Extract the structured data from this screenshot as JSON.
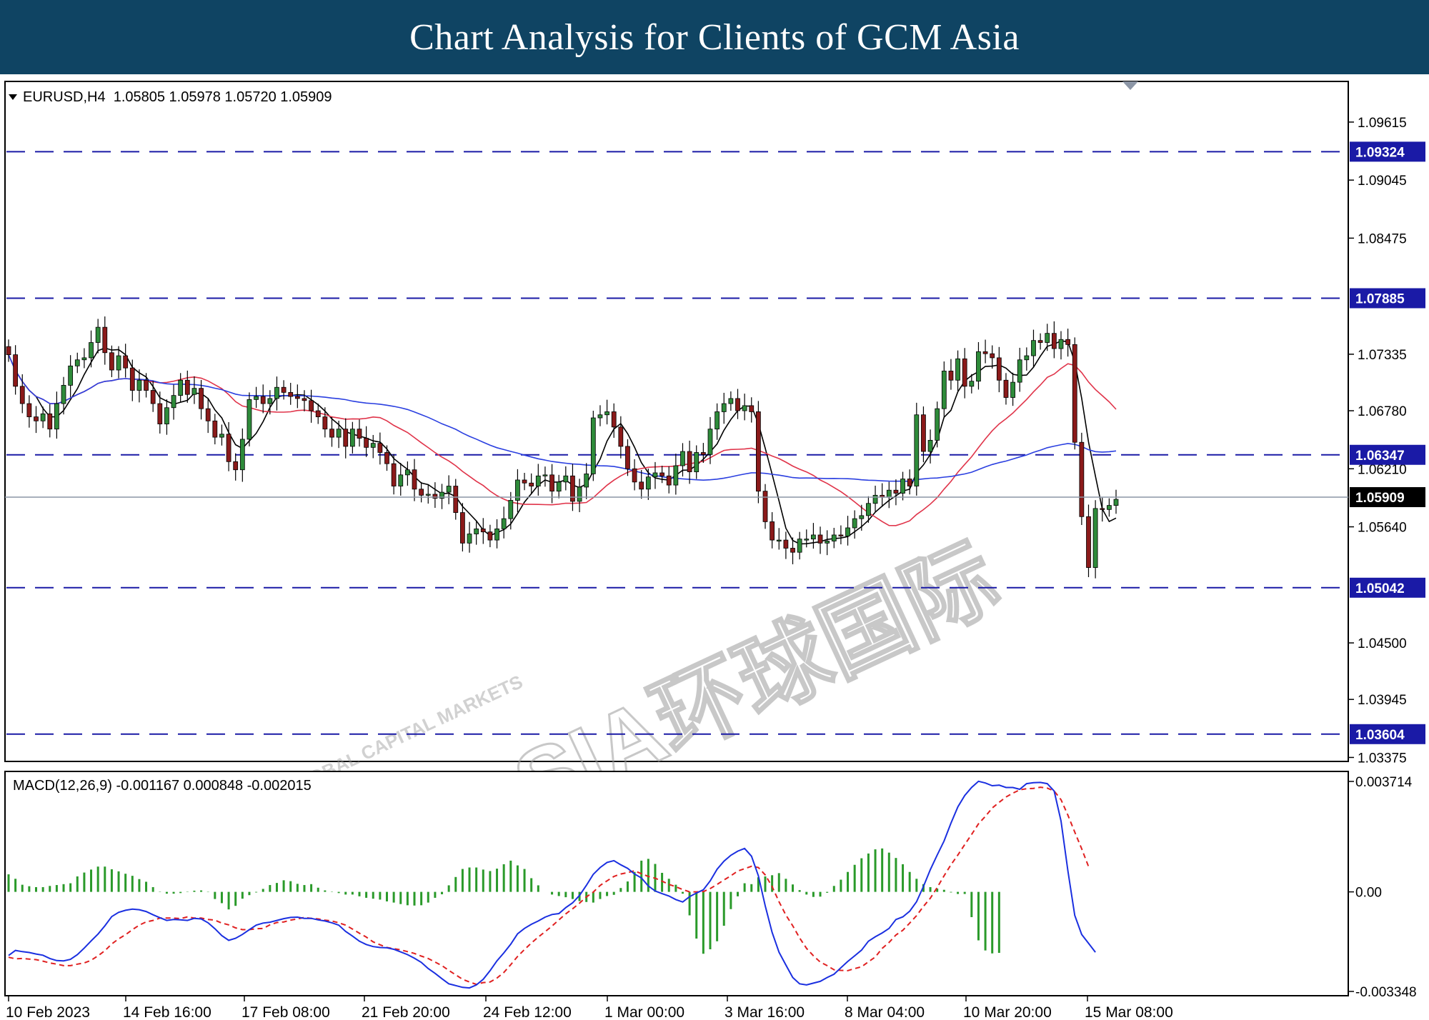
{
  "header": {
    "title": "Chart Analysis for Clients of GCM Asia"
  },
  "price_panel": {
    "symbol_line": "EURUSD,H4  1.05805 1.05978 1.05720 1.05909",
    "watermark": "GCMASIA环球国际",
    "watermark_sub": "GLOBAL CAPITAL MARKETS"
  },
  "macd_panel": {
    "label": "MACD(12,26,9) -0.001167 0.000848 -0.002015"
  },
  "colors": {
    "banner": "#0f4463",
    "levels": "#1a1aa6",
    "ma_fast": "#000000",
    "ma_mid": "#e0344a",
    "ma_slow": "#2a3fe0",
    "candle_up": "#2e8b3a",
    "candle_down": "#8b1a1a",
    "hist": "#2a9a2a",
    "macd_line": "#1a2fe0",
    "signal_line": "#e02020"
  },
  "chart_data": [
    {
      "type": "candlestick",
      "title": "EURUSD,H4",
      "ohlc_last": {
        "open": 1.05805,
        "high": 1.05978,
        "low": 1.0572,
        "close": 1.05909
      },
      "ylim": [
        1.0335,
        1.1
      ],
      "y_ticks": [
        1.09615,
        1.09045,
        1.08475,
        1.07335,
        1.0678,
        1.0621,
        1.0564,
        1.045,
        1.03945,
        1.03375
      ],
      "x_ticks": [
        "10 Feb 2023",
        "14 Feb 16:00",
        "17 Feb 08:00",
        "21 Feb 20:00",
        "24 Feb 12:00",
        "1 Mar 00:00",
        "3 Mar 16:00",
        "8 Mar 04:00",
        "10 Mar 20:00",
        "15 Mar 08:00"
      ],
      "current_price": "1.05909",
      "horizontal_levels": [
        "1.09324",
        "1.07885",
        "1.06347",
        "1.05042",
        "1.03604"
      ],
      "closes": [
        1.0733,
        1.0702,
        1.0685,
        1.0672,
        1.0668,
        1.0675,
        1.066,
        1.0685,
        1.0703,
        1.0722,
        1.0728,
        1.073,
        1.0745,
        1.076,
        1.0735,
        1.0718,
        1.0732,
        1.072,
        1.0698,
        1.0708,
        1.0698,
        1.0685,
        1.0665,
        1.0681,
        1.0693,
        1.0708,
        1.0694,
        1.07,
        1.068,
        1.0668,
        1.0652,
        1.0655,
        1.0628,
        1.062,
        1.065,
        1.0689,
        1.0692,
        1.0685,
        1.069,
        1.0701,
        1.0696,
        1.0692,
        1.069,
        1.0688,
        1.0678,
        1.0672,
        1.066,
        1.0652,
        1.066,
        1.0643,
        1.066,
        1.0651,
        1.0642,
        1.0646,
        1.0637,
        1.0626,
        1.0604,
        1.0615,
        1.062,
        1.0601,
        1.0595,
        1.0596,
        1.0592,
        1.0598,
        1.0604,
        1.0578,
        1.0548,
        1.0557,
        1.0562,
        1.0559,
        1.0551,
        1.0562,
        1.0572,
        1.059,
        1.061,
        1.0607,
        1.0604,
        1.0614,
        1.0615,
        1.0599,
        1.0608,
        1.0614,
        1.0589,
        1.0603,
        1.0616,
        1.0671,
        1.0674,
        1.0677,
        1.0662,
        1.0643,
        1.0621,
        1.0608,
        1.0601,
        1.0613,
        1.0617,
        1.0614,
        1.0605,
        1.0624,
        1.0638,
        1.0618,
        1.0637,
        1.0635,
        1.066,
        1.0677,
        1.0685,
        1.069,
        1.0678,
        1.0683,
        1.0677,
        1.0599,
        1.0569,
        1.0551,
        1.0551,
        1.0543,
        1.0539,
        1.0552,
        1.0552,
        1.0556,
        1.0548,
        1.055,
        1.0556,
        1.0555,
        1.0563,
        1.0572,
        1.0575,
        1.0587,
        1.0595,
        1.0593,
        1.06,
        1.0597,
        1.0611,
        1.0604,
        1.0674,
        1.0638,
        1.0649,
        1.068,
        1.0717,
        1.0708,
        1.0729,
        1.0702,
        1.0707,
        1.0736,
        1.0734,
        1.073,
        1.0708,
        1.0691,
        1.0706,
        1.0728,
        1.0732,
        1.0747,
        1.0745,
        1.0754,
        1.0739,
        1.0748,
        1.0743,
        1.0647,
        1.0574,
        1.0524,
        1.0582,
        1.0581,
        1.0585,
        1.0591
      ]
    },
    {
      "type": "line",
      "title": "MACD(12,26,9)",
      "series": [
        {
          "name": "MACD",
          "values": [
            -0.00214,
            -0.00197,
            -0.00201,
            -0.00204,
            -0.00209,
            -0.00213,
            -0.00224,
            -0.00231,
            -0.00232,
            -0.00227,
            -0.00211,
            -0.00189,
            -0.00165,
            -0.00142,
            -0.00114,
            -0.00083,
            -0.00069,
            -0.00062,
            -0.00058,
            -0.0006,
            -0.00066,
            -0.00077,
            -0.00087,
            -0.00096,
            -0.00093,
            -0.00094,
            -0.00096,
            -0.00089,
            -0.00091,
            -0.00104,
            -0.00124,
            -0.00147,
            -0.00163,
            -0.00156,
            -0.00143,
            -0.00127,
            -0.00112,
            -0.00105,
            -0.00102,
            -0.00096,
            -0.0009,
            -0.00086,
            -0.00085,
            -0.00089,
            -0.00089,
            -0.00094,
            -0.00098,
            -0.00104,
            -0.00112,
            -0.00133,
            -0.00149,
            -0.00166,
            -0.00177,
            -0.00184,
            -0.00187,
            -0.00188,
            -0.00193,
            -0.00202,
            -0.00211,
            -0.00223,
            -0.00237,
            -0.00258,
            -0.00274,
            -0.00292,
            -0.00309,
            -0.00315,
            -0.00321,
            -0.00323,
            -0.00313,
            -0.00294,
            -0.00265,
            -0.00232,
            -0.00205,
            -0.00176,
            -0.00141,
            -0.00123,
            -0.00109,
            -0.00098,
            -0.00085,
            -0.00076,
            -0.00073,
            -0.00053,
            -0.00037,
            -0.00012,
            0.00022,
            0.00059,
            0.00082,
            0.00099,
            0.00105,
            0.00091,
            0.00079,
            0.0006,
            0.00047,
            0.0002,
            3e-05,
            -6e-05,
            -0.00014,
            -0.00026,
            -0.00034,
            -0.00016,
            -4e-05,
            7e-05,
            0.00037,
            0.00076,
            0.00103,
            0.00123,
            0.00137,
            0.00146,
            0.0012,
            0.00054,
            -0.00047,
            -0.00136,
            -0.00203,
            -0.00246,
            -0.00288,
            -0.00309,
            -0.00313,
            -0.00307,
            -0.00301,
            -0.00288,
            -0.00277,
            -0.00255,
            -0.00234,
            -0.00215,
            -0.00196,
            -0.00166,
            -0.00151,
            -0.00138,
            -0.00123,
            -0.00093,
            -0.00084,
            -0.00065,
            -0.00033,
            0.00018,
            0.00075,
            0.00124,
            0.00171,
            0.00231,
            0.00286,
            0.00324,
            0.00351,
            0.00372,
            0.00366,
            0.00357,
            0.00359,
            0.00351,
            0.00351,
            0.00345,
            0.00364,
            0.00367,
            0.00368,
            0.00364,
            0.00339,
            0.00238,
            0.00071,
            -0.00079,
            -0.00143,
            -0.00173,
            -0.00203
          ]
        },
        {
          "name": "Signal",
          "values": [
            -0.0022,
            -0.00225,
            -0.00224,
            -0.00226,
            -0.00228,
            -0.00233,
            -0.00239,
            -0.00243,
            -0.00248,
            -0.00248,
            -0.00243,
            -0.00239,
            -0.0023,
            -0.00215,
            -0.00198,
            -0.00175,
            -0.00158,
            -0.00144,
            -0.00127,
            -0.00112,
            -0.00101,
            -0.00096,
            -0.00088,
            -0.00088,
            -0.00088,
            -0.0009,
            -0.00084,
            -0.00088,
            -0.00088,
            -0.00093,
            -0.00095,
            -0.00105,
            -0.00111,
            -0.00121,
            -0.00127,
            -0.00127,
            -0.00124,
            -0.00123,
            -0.00111,
            -0.00103,
            -0.00101,
            -0.00095,
            -0.00091,
            -0.00086,
            -0.00089,
            -0.00091,
            -0.00095,
            -0.00098,
            -0.00104,
            -0.00112,
            -0.00125,
            -0.00139,
            -0.00152,
            -0.00168,
            -0.00178,
            -0.00187,
            -0.00191,
            -0.00195,
            -0.00201,
            -0.00207,
            -0.00216,
            -0.00224,
            -0.00236,
            -0.00248,
            -0.00264,
            -0.00279,
            -0.00294,
            -0.00303,
            -0.00311,
            -0.00305,
            -0.00303,
            -0.0029,
            -0.00271,
            -0.00245,
            -0.00217,
            -0.00194,
            -0.00172,
            -0.00152,
            -0.00134,
            -0.00115,
            -0.00094,
            -0.00074,
            -0.00057,
            -0.00038,
            -0.00017,
            -1e-05,
            0.00022,
            0.00037,
            0.00052,
            0.0006,
            0.00065,
            0.00071,
            0.00061,
            0.00052,
            0.00046,
            0.00036,
            0.00025,
            0.00017,
            8e-05,
            0.0,
            0.0,
            1e-05,
            0.00011,
            0.00025,
            0.0004,
            0.00054,
            0.0007,
            0.00078,
            0.00086,
            0.00082,
            0.00057,
            0.00018,
            -0.00033,
            -0.00078,
            -0.00114,
            -0.00155,
            -0.0019,
            -0.00215,
            -0.00236,
            -0.00248,
            -0.00262,
            -0.00264,
            -0.00265,
            -0.00258,
            -0.00252,
            -0.00235,
            -0.00219,
            -0.0019,
            -0.0017,
            -0.00145,
            -0.00129,
            -0.00105,
            -0.0008,
            -0.00049,
            -0.00021,
            0.00015,
            0.00054,
            0.00091,
            0.00124,
            0.00159,
            0.00193,
            0.00229,
            0.00254,
            0.00282,
            0.00301,
            0.00319,
            0.00332,
            0.00343,
            0.00347,
            0.00348,
            0.00352,
            0.00349,
            0.00339,
            0.0031,
            0.00258,
            0.00201,
            0.00145,
            0.00085
          ]
        }
      ],
      "histogram": [
        0.00059,
        0.00044,
        0.00024,
        0.00019,
        0.00016,
        0.00016,
        0.0002,
        0.00023,
        0.00026,
        0.00029,
        0.00052,
        0.00065,
        0.00075,
        0.00085,
        0.00085,
        0.00076,
        0.00069,
        0.00061,
        0.00054,
        0.00043,
        0.00034,
        0.00016,
        1e-05,
        -6e-05,
        -6e-05,
        -4e-05,
        1e-05,
        4e-05,
        5e-05,
        -1e-05,
        -0.00024,
        -0.00038,
        -0.00059,
        -0.00047,
        -0.00023,
        -0.00011,
        -2e-05,
        0.0001,
        0.00023,
        0.0003,
        0.00039,
        0.00036,
        0.00027,
        0.00023,
        0.00026,
        0.00014,
        5e-05,
        1e-05,
        -4e-05,
        -9e-05,
        -9e-05,
        -0.00015,
        -0.0002,
        -0.00023,
        -0.00026,
        -0.00032,
        -0.00036,
        -0.00041,
        -0.00045,
        -0.00046,
        -0.00045,
        -0.00036,
        -0.0002,
        -8e-05,
        0.00022,
        0.0005,
        0.00077,
        0.00082,
        0.00082,
        0.00075,
        0.0007,
        0.00078,
        0.00093,
        0.00105,
        0.00089,
        0.00077,
        0.00046,
        0.00022,
        0.0,
        -9e-05,
        -0.00014,
        -0.00018,
        -0.00024,
        -0.00031,
        -0.00034,
        -0.00036,
        -0.00024,
        -0.00014,
        -0.0001,
        0.00013,
        0.00035,
        0.00067,
        0.00105,
        0.00111,
        0.00094,
        0.00064,
        0.00044,
        0.00024,
        -6e-05,
        -0.00079,
        -0.00157,
        -0.00208,
        -0.00193,
        -0.00166,
        -0.00114,
        -0.00058,
        -0.00015,
        0.00029,
        0.00026,
        0.00049,
        0.00052,
        0.00056,
        0.00063,
        0.00044,
        0.00025,
        6e-05,
        -9e-05,
        -0.00017,
        -0.00016,
        -3e-05,
        0.0002,
        0.00041,
        0.00067,
        0.00091,
        0.00113,
        0.00129,
        0.00143,
        0.00146,
        0.00132,
        0.00114,
        0.00093,
        0.00067,
        0.00044,
        0.00026,
        0.00016,
        0.00011,
        7e-05,
        -2e-05,
        -7e-05,
        -7e-05,
        -0.00085,
        -0.00163,
        -0.00197,
        -0.00207,
        -0.00205
      ]
    }
  ],
  "macd_axis": {
    "ylim": [
      -0.003348,
      0.003714
    ],
    "y_ticks": [
      "0.003714",
      "0.00",
      "-0.003348"
    ]
  }
}
